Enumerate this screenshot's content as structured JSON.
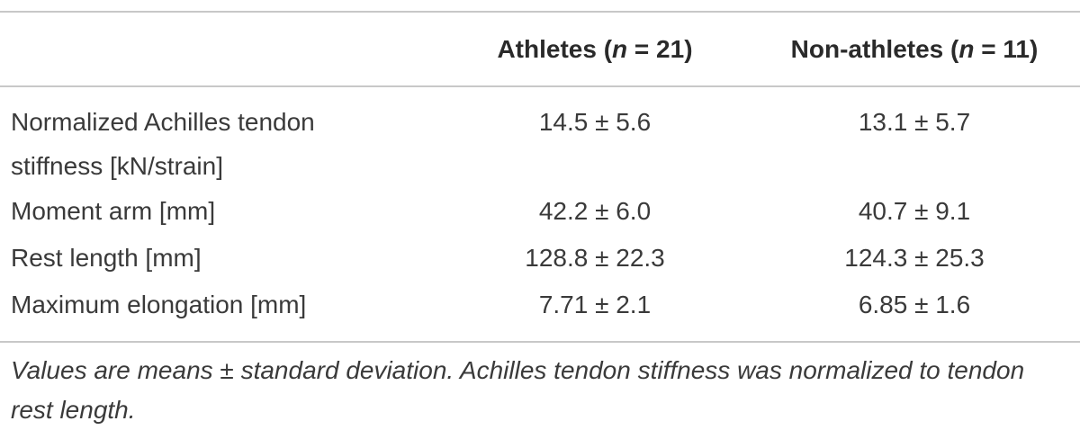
{
  "table": {
    "columns": [
      [
        "Athletes (",
        "n",
        " = 21)"
      ],
      [
        "Non-athletes (",
        "n",
        " = 11)"
      ]
    ],
    "rows": [
      [
        "Normalized Achilles tendon stiffness [kN/strain]",
        "14.5 ± 5.6",
        "13.1 ± 5.7"
      ],
      [
        "Moment arm [mm]",
        "42.2 ± 6.0",
        "40.7 ± 9.1"
      ],
      [
        "Rest length [mm]",
        "128.8 ± 22.3",
        "124.3 ± 25.3"
      ],
      [
        "Maximum elongation [mm]",
        "7.71 ± 2.1",
        "6.85 ± 1.6"
      ]
    ],
    "footnote": "Values are means ± standard deviation. Achilles tendon stiffness was normalized to tendon rest length."
  }
}
